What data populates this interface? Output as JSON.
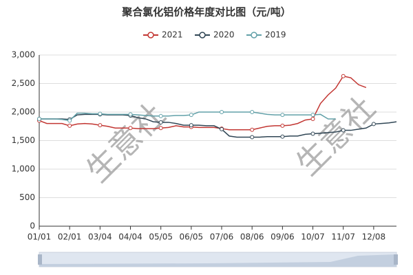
{
  "chart_data": {
    "type": "line",
    "title": "聚合氯化铝价格年度对比图（元/吨）",
    "watermark": "生意社",
    "categories": [
      "01/01",
      null,
      null,
      null,
      "02/01",
      null,
      null,
      null,
      "03/04",
      null,
      null,
      null,
      "04/04",
      null,
      null,
      null,
      "05/05",
      null,
      null,
      null,
      "06/05",
      null,
      null,
      null,
      "07/06",
      null,
      null,
      null,
      "08/06",
      null,
      null,
      null,
      "09/06",
      null,
      null,
      null,
      "10/07",
      null,
      null,
      null,
      "11/07",
      null,
      null,
      null,
      "12/08",
      null,
      null,
      null
    ],
    "series": [
      {
        "name": "2021",
        "color": "#c23531",
        "values": [
          1850,
          1800,
          1800,
          1800,
          1760,
          1790,
          1800,
          1790,
          1770,
          1750,
          1720,
          1720,
          1720,
          1710,
          1710,
          1710,
          1720,
          1730,
          1760,
          1740,
          1740,
          1730,
          1730,
          1730,
          1710,
          1690,
          1690,
          1690,
          1690,
          1720,
          1750,
          1760,
          1760,
          1770,
          1800,
          1860,
          1880,
          2150,
          2300,
          2420,
          2630,
          2600,
          2480,
          2430,
          null,
          null,
          null,
          null
        ]
      },
      {
        "name": "2020",
        "color": "#2f4554",
        "values": [
          1880,
          1880,
          1880,
          1880,
          1870,
          1950,
          1960,
          1960,
          1960,
          1950,
          1950,
          1950,
          1940,
          1900,
          1880,
          1830,
          1820,
          1820,
          1800,
          1770,
          1770,
          1770,
          1760,
          1760,
          1700,
          1580,
          1560,
          1560,
          1560,
          1560,
          1570,
          1570,
          1570,
          1580,
          1580,
          1610,
          1620,
          1630,
          1640,
          1650,
          1680,
          1680,
          1700,
          1720,
          1790,
          1800,
          1810,
          1830
        ]
      },
      {
        "name": "2019",
        "color": "#61a0a8",
        "values": [
          1880,
          1880,
          1880,
          1870,
          1850,
          1980,
          1980,
          1970,
          1970,
          1960,
          1960,
          1960,
          1960,
          1950,
          1940,
          1930,
          1930,
          1930,
          1940,
          1940,
          1950,
          2000,
          2000,
          2000,
          2000,
          2000,
          2000,
          2000,
          2000,
          1980,
          1960,
          1950,
          1950,
          1950,
          1950,
          1950,
          1950,
          1960,
          1880,
          1880,
          null,
          null,
          null,
          null,
          null,
          null,
          null,
          null
        ]
      }
    ],
    "ylim": [
      0,
      3000
    ],
    "yticks": [
      0,
      500,
      {
        "value": 1000,
        "label": "1,000"
      },
      {
        "value": 1500,
        "label": "1,500"
      },
      {
        "value": 2000,
        "label": "2,000"
      },
      {
        "value": 2500,
        "label": "2,500"
      },
      {
        "value": 3000,
        "label": "3,000"
      }
    ],
    "grid": true,
    "legend": "top"
  }
}
